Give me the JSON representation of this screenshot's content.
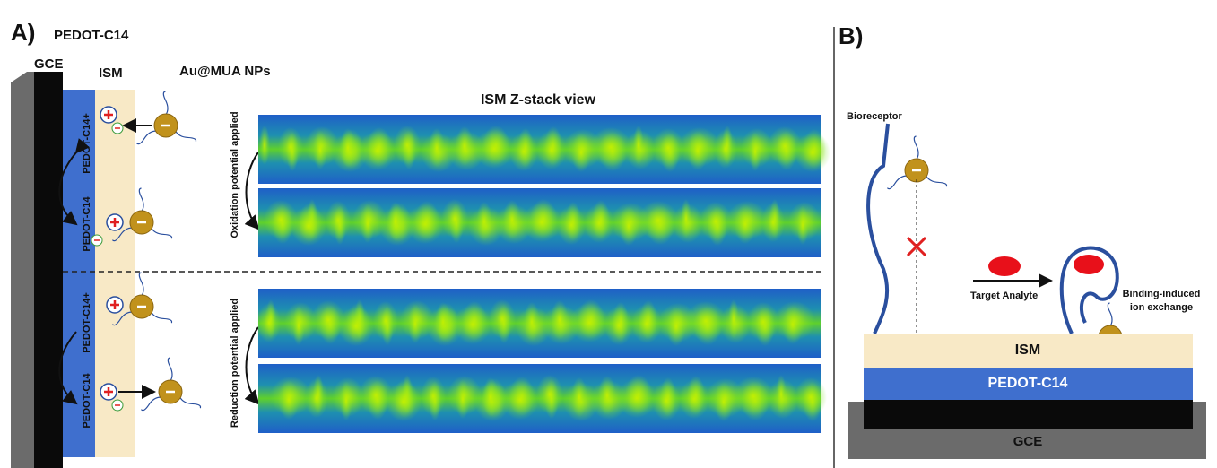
{
  "panel_a": {
    "label": "A)",
    "gce": "GCE",
    "pedot": "PEDOT-C14",
    "ism": "ISM",
    "nanoparticles": "Au@MUA NPs",
    "zstack_title": "ISM Z-stack view",
    "oxidation": "Oxidation potential applied",
    "reduction": "Reduction potential applied",
    "top_labels": [
      "PEDOT-C14+",
      "PEDOT-C14"
    ],
    "bottom_labels": [
      "PEDOT-C14+",
      "PEDOT-C14"
    ]
  },
  "panel_b": {
    "label": "B)",
    "bioreceptor": "Bioreceptor",
    "target": "Target Analyte",
    "binding": [
      "Binding-induced",
      "ion exchange"
    ],
    "ism": "ISM",
    "pedot": "PEDOT-C14",
    "gce": "GCE"
  }
}
